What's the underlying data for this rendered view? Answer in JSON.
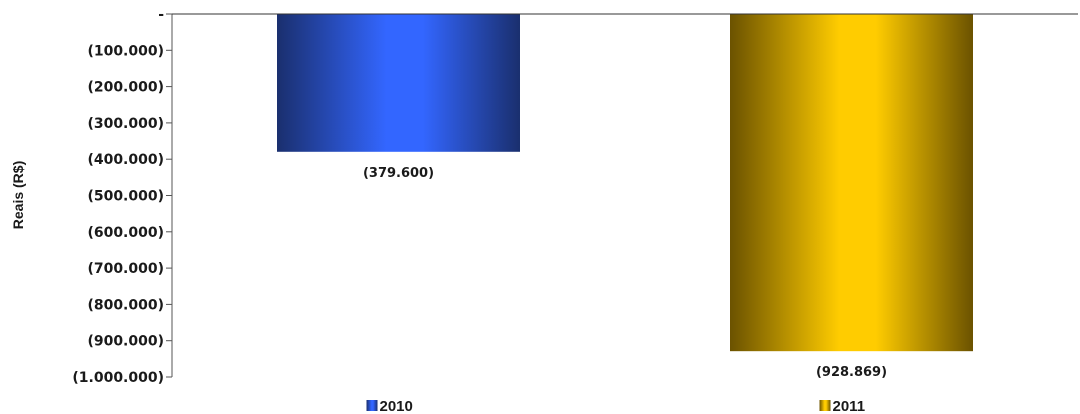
{
  "chart_data": {
    "type": "bar",
    "categories": [
      "2010",
      "2011"
    ],
    "values": [
      -379600,
      -928869
    ],
    "data_labels": [
      "(379.600)",
      "(928.869)"
    ],
    "ylabel": "Reais (R$)",
    "ylim": [
      -1000000,
      0
    ],
    "yticks": [
      0,
      -100000,
      -200000,
      -300000,
      -400000,
      -500000,
      -600000,
      -700000,
      -800000,
      -900000,
      -1000000
    ],
    "ytick_labels": [
      "-",
      "(100.000)",
      "(200.000)",
      "(300.000)",
      "(400.000)",
      "(500.000)",
      "(600.000)",
      "(700.000)",
      "(800.000)",
      "(900.000)",
      "(1.000.000)"
    ],
    "legend": [
      "2010",
      "2011"
    ],
    "legend_position": "bottom",
    "grid": false,
    "colors": {
      "2010": {
        "edge": "#1a2f6e",
        "mid": "#3366ff"
      },
      "2011": {
        "edge": "#6b5200",
        "mid": "#ffcc00"
      }
    }
  }
}
